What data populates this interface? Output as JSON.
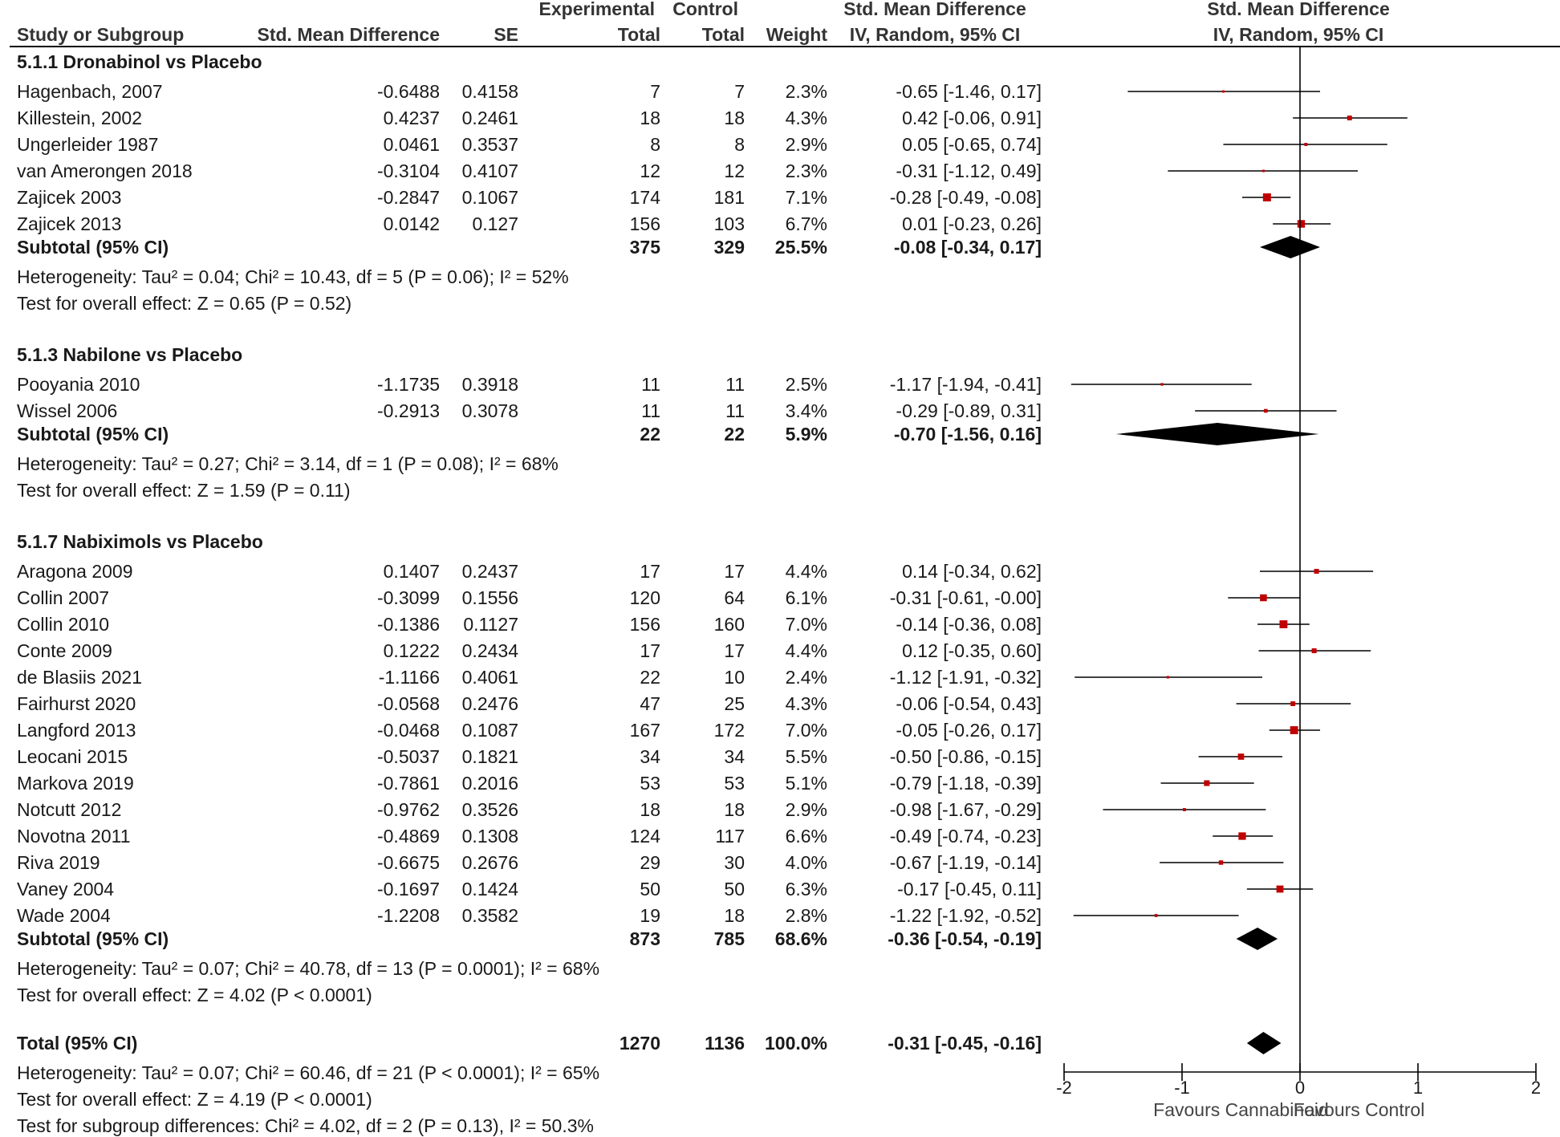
{
  "colors": {
    "ink": "#000000",
    "point": "#c00000",
    "text": "#1a1a1a"
  },
  "header": {
    "study": "Study or Subgroup",
    "smd": "Std. Mean Difference",
    "se": "SE",
    "experimental": "Experimental",
    "control": "Control",
    "exp_total": "Total",
    "ctrl_total": "Total",
    "weight": "Weight",
    "ci_title": "Std. Mean Difference",
    "ci_method": "IV, Random, 95% CI",
    "plot_title": "Std. Mean Difference",
    "plot_method": "IV, Random, 95% CI"
  },
  "chart_data": {
    "type": "forest",
    "title": "Std. Mean Difference IV, Random, 95% CI",
    "xlim": [
      -2,
      2
    ],
    "ticks": [
      "-2",
      "-1",
      "0",
      "1",
      "2"
    ],
    "tick_values": [
      -2,
      -1,
      0,
      1,
      2
    ],
    "favours_left": "Favours Cannabinoid",
    "favours_right": "Favours Control",
    "subgroups": [
      {
        "title": "5.1.1 Dronabinol vs Placebo",
        "studies": [
          {
            "name": "Hagenbach, 2007",
            "smd": "-0.6488",
            "se": "0.4158",
            "exp_total": "7",
            "ctrl_total": "7",
            "weight": "2.3%",
            "ci_text": "-0.65 [-1.46, 0.17]",
            "est": -0.65,
            "lo": -1.46,
            "hi": 0.17
          },
          {
            "name": "Killestein, 2002",
            "smd": "0.4237",
            "se": "0.2461",
            "exp_total": "18",
            "ctrl_total": "18",
            "weight": "4.3%",
            "ci_text": "0.42 [-0.06, 0.91]",
            "est": 0.42,
            "lo": -0.06,
            "hi": 0.91
          },
          {
            "name": "Ungerleider 1987",
            "smd": "0.0461",
            "se": "0.3537",
            "exp_total": "8",
            "ctrl_total": "8",
            "weight": "2.9%",
            "ci_text": "0.05 [-0.65, 0.74]",
            "est": 0.05,
            "lo": -0.65,
            "hi": 0.74
          },
          {
            "name": "van Amerongen 2018",
            "smd": "-0.3104",
            "se": "0.4107",
            "exp_total": "12",
            "ctrl_total": "12",
            "weight": "2.3%",
            "ci_text": "-0.31 [-1.12, 0.49]",
            "est": -0.31,
            "lo": -1.12,
            "hi": 0.49
          },
          {
            "name": "Zajicek 2003",
            "smd": "-0.2847",
            "se": "0.1067",
            "exp_total": "174",
            "ctrl_total": "181",
            "weight": "7.1%",
            "ci_text": "-0.28 [-0.49, -0.08]",
            "est": -0.28,
            "lo": -0.49,
            "hi": -0.08
          },
          {
            "name": "Zajicek 2013",
            "smd": "0.0142",
            "se": "0.127",
            "exp_total": "156",
            "ctrl_total": "103",
            "weight": "6.7%",
            "ci_text": "0.01 [-0.23, 0.26]",
            "est": 0.01,
            "lo": -0.23,
            "hi": 0.26
          }
        ],
        "subtotal": {
          "label": "Subtotal (95% CI)",
          "exp_total": "375",
          "ctrl_total": "329",
          "weight": "25.5%",
          "ci_text": "-0.08 [-0.34, 0.17]",
          "est": -0.08,
          "lo": -0.34,
          "hi": 0.17
        },
        "heterogeneity": "Heterogeneity: Tau² = 0.04; Chi² = 10.43, df = 5 (P = 0.06); I² = 52%",
        "overall": "Test for overall effect: Z = 0.65 (P = 0.52)"
      },
      {
        "title": "5.1.3 Nabilone vs Placebo",
        "studies": [
          {
            "name": "Pooyania 2010",
            "smd": "-1.1735",
            "se": "0.3918",
            "exp_total": "11",
            "ctrl_total": "11",
            "weight": "2.5%",
            "ci_text": "-1.17 [-1.94, -0.41]",
            "est": -1.17,
            "lo": -1.94,
            "hi": -0.41
          },
          {
            "name": "Wissel 2006",
            "smd": "-0.2913",
            "se": "0.3078",
            "exp_total": "11",
            "ctrl_total": "11",
            "weight": "3.4%",
            "ci_text": "-0.29 [-0.89, 0.31]",
            "est": -0.29,
            "lo": -0.89,
            "hi": 0.31
          }
        ],
        "subtotal": {
          "label": "Subtotal (95% CI)",
          "exp_total": "22",
          "ctrl_total": "22",
          "weight": "5.9%",
          "ci_text": "-0.70 [-1.56, 0.16]",
          "est": -0.7,
          "lo": -1.56,
          "hi": 0.16
        },
        "heterogeneity": "Heterogeneity: Tau² = 0.27; Chi² = 3.14, df = 1 (P = 0.08); I² = 68%",
        "overall": "Test for overall effect: Z = 1.59 (P = 0.11)"
      },
      {
        "title": "5.1.7 Nabiximols vs Placebo",
        "studies": [
          {
            "name": "Aragona 2009",
            "smd": "0.1407",
            "se": "0.2437",
            "exp_total": "17",
            "ctrl_total": "17",
            "weight": "4.4%",
            "ci_text": "0.14 [-0.34, 0.62]",
            "est": 0.14,
            "lo": -0.34,
            "hi": 0.62
          },
          {
            "name": "Collin 2007",
            "smd": "-0.3099",
            "se": "0.1556",
            "exp_total": "120",
            "ctrl_total": "64",
            "weight": "6.1%",
            "ci_text": "-0.31 [-0.61, -0.00]",
            "est": -0.31,
            "lo": -0.61,
            "hi": 0.0
          },
          {
            "name": "Collin 2010",
            "smd": "-0.1386",
            "se": "0.1127",
            "exp_total": "156",
            "ctrl_total": "160",
            "weight": "7.0%",
            "ci_text": "-0.14 [-0.36, 0.08]",
            "est": -0.14,
            "lo": -0.36,
            "hi": 0.08
          },
          {
            "name": "Conte 2009",
            "smd": "0.1222",
            "se": "0.2434",
            "exp_total": "17",
            "ctrl_total": "17",
            "weight": "4.4%",
            "ci_text": "0.12 [-0.35, 0.60]",
            "est": 0.12,
            "lo": -0.35,
            "hi": 0.6
          },
          {
            "name": "de Blasiis 2021",
            "smd": "-1.1166",
            "se": "0.4061",
            "exp_total": "22",
            "ctrl_total": "10",
            "weight": "2.4%",
            "ci_text": "-1.12 [-1.91, -0.32]",
            "est": -1.12,
            "lo": -1.91,
            "hi": -0.32
          },
          {
            "name": "Fairhurst 2020",
            "smd": "-0.0568",
            "se": "0.2476",
            "exp_total": "47",
            "ctrl_total": "25",
            "weight": "4.3%",
            "ci_text": "-0.06 [-0.54, 0.43]",
            "est": -0.06,
            "lo": -0.54,
            "hi": 0.43
          },
          {
            "name": "Langford 2013",
            "smd": "-0.0468",
            "se": "0.1087",
            "exp_total": "167",
            "ctrl_total": "172",
            "weight": "7.0%",
            "ci_text": "-0.05 [-0.26, 0.17]",
            "est": -0.05,
            "lo": -0.26,
            "hi": 0.17
          },
          {
            "name": "Leocani 2015",
            "smd": "-0.5037",
            "se": "0.1821",
            "exp_total": "34",
            "ctrl_total": "34",
            "weight": "5.5%",
            "ci_text": "-0.50 [-0.86, -0.15]",
            "est": -0.5,
            "lo": -0.86,
            "hi": -0.15
          },
          {
            "name": "Markova 2019",
            "smd": "-0.7861",
            "se": "0.2016",
            "exp_total": "53",
            "ctrl_total": "53",
            "weight": "5.1%",
            "ci_text": "-0.79 [-1.18, -0.39]",
            "est": -0.79,
            "lo": -1.18,
            "hi": -0.39
          },
          {
            "name": "Notcutt 2012",
            "smd": "-0.9762",
            "se": "0.3526",
            "exp_total": "18",
            "ctrl_total": "18",
            "weight": "2.9%",
            "ci_text": "-0.98 [-1.67, -0.29]",
            "est": -0.98,
            "lo": -1.67,
            "hi": -0.29
          },
          {
            "name": "Novotna 2011",
            "smd": "-0.4869",
            "se": "0.1308",
            "exp_total": "124",
            "ctrl_total": "117",
            "weight": "6.6%",
            "ci_text": "-0.49 [-0.74, -0.23]",
            "est": -0.49,
            "lo": -0.74,
            "hi": -0.23
          },
          {
            "name": "Riva 2019",
            "smd": "-0.6675",
            "se": "0.2676",
            "exp_total": "29",
            "ctrl_total": "30",
            "weight": "4.0%",
            "ci_text": "-0.67 [-1.19, -0.14]",
            "est": -0.67,
            "lo": -1.19,
            "hi": -0.14
          },
          {
            "name": "Vaney 2004",
            "smd": "-0.1697",
            "se": "0.1424",
            "exp_total": "50",
            "ctrl_total": "50",
            "weight": "6.3%",
            "ci_text": "-0.17 [-0.45, 0.11]",
            "est": -0.17,
            "lo": -0.45,
            "hi": 0.11
          },
          {
            "name": "Wade 2004",
            "smd": "-1.2208",
            "se": "0.3582",
            "exp_total": "19",
            "ctrl_total": "18",
            "weight": "2.8%",
            "ci_text": "-1.22 [-1.92, -0.52]",
            "est": -1.22,
            "lo": -1.92,
            "hi": -0.52
          }
        ],
        "subtotal": {
          "label": "Subtotal (95% CI)",
          "exp_total": "873",
          "ctrl_total": "785",
          "weight": "68.6%",
          "ci_text": "-0.36 [-0.54, -0.19]",
          "est": -0.36,
          "lo": -0.54,
          "hi": -0.19
        },
        "heterogeneity": "Heterogeneity: Tau² = 0.07; Chi² = 40.78, df = 13 (P = 0.0001); I² = 68%",
        "overall": "Test for overall effect: Z = 4.02 (P < 0.0001)"
      }
    ],
    "total": {
      "label": "Total (95% CI)",
      "exp_total": "1270",
      "ctrl_total": "1136",
      "weight": "100.0%",
      "ci_text": "-0.31 [-0.45, -0.16]",
      "est": -0.31,
      "lo": -0.45,
      "hi": -0.16
    },
    "total_heterogeneity": "Heterogeneity: Tau² = 0.07; Chi² = 60.46, df = 21 (P < 0.0001); I² = 65%",
    "total_overall": "Test for overall effect: Z = 4.19 (P < 0.0001)",
    "subgroup_differences": "Test for subgroup differences: Chi² = 4.02, df = 2 (P = 0.13), I² = 50.3%"
  }
}
